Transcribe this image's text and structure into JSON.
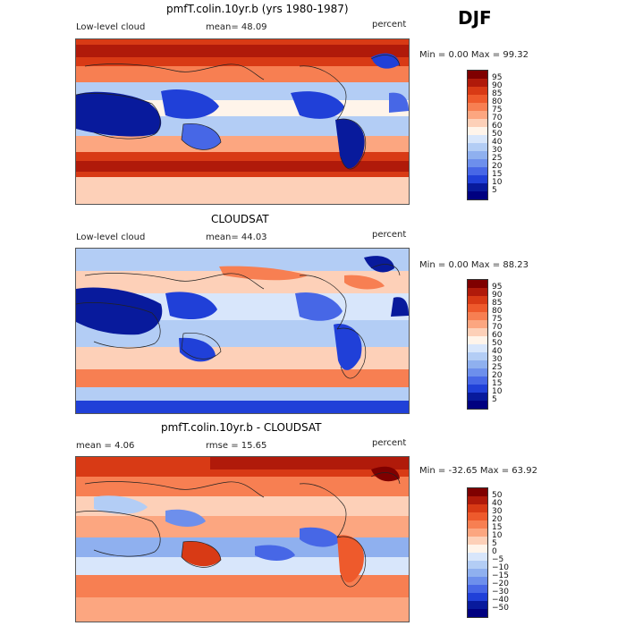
{
  "season": "DJF",
  "panels": [
    {
      "title": "pmfT.colin.10yr.b (yrs 1980-1987)",
      "left_label": "Low-level cloud",
      "mid_label": "mean=  48.09",
      "right_label": "percent",
      "minmax": "Min =    0.00 Max =  99.32",
      "colorbar_labels": [
        "95",
        "90",
        "85",
        "80",
        "75",
        "70",
        "60",
        "50",
        "40",
        "30",
        "25",
        "20",
        "15",
        "10",
        "5"
      ],
      "colors": [
        "#7f0000",
        "#b01a0a",
        "#d83a15",
        "#ee5a2c",
        "#f77f52",
        "#fca680",
        "#fdd0b8",
        "#fff4ea",
        "#d8e6fb",
        "#b3cdf5",
        "#8fb0ef",
        "#6d8fec",
        "#4767e6",
        "#2040d8",
        "#081a9c",
        "#000080"
      ]
    },
    {
      "title": "CLOUDSAT",
      "left_label": "Low-level cloud",
      "mid_label": "mean=  44.03",
      "right_label": "percent",
      "minmax": "Min =    0.00 Max =  88.23",
      "colorbar_labels": [
        "95",
        "90",
        "85",
        "80",
        "75",
        "70",
        "60",
        "50",
        "40",
        "30",
        "25",
        "20",
        "15",
        "10",
        "5"
      ],
      "colors": [
        "#7f0000",
        "#b01a0a",
        "#d83a15",
        "#ee5a2c",
        "#f77f52",
        "#fca680",
        "#fdd0b8",
        "#fff4ea",
        "#d8e6fb",
        "#b3cdf5",
        "#8fb0ef",
        "#6d8fec",
        "#4767e6",
        "#2040d8",
        "#081a9c",
        "#000080"
      ]
    },
    {
      "title": "pmfT.colin.10yr.b - CLOUDSAT",
      "left_label": "mean =    4.06",
      "mid_label": "rmse =   15.65",
      "right_label": "percent",
      "minmax": "Min = -32.65 Max =  63.92",
      "colorbar_labels": [
        "50",
        "40",
        "30",
        "20",
        "15",
        "10",
        "5",
        "0",
        "−5",
        "−10",
        "−15",
        "−20",
        "−30",
        "−40",
        "−50"
      ],
      "colors": [
        "#7f0000",
        "#b01a0a",
        "#d83a15",
        "#ee5a2c",
        "#f77f52",
        "#fca680",
        "#fdd0b8",
        "#fff4ea",
        "#d8e6fb",
        "#b3cdf5",
        "#8fb0ef",
        "#6d8fec",
        "#4767e6",
        "#2040d8",
        "#081a9c",
        "#000080"
      ]
    }
  ]
}
